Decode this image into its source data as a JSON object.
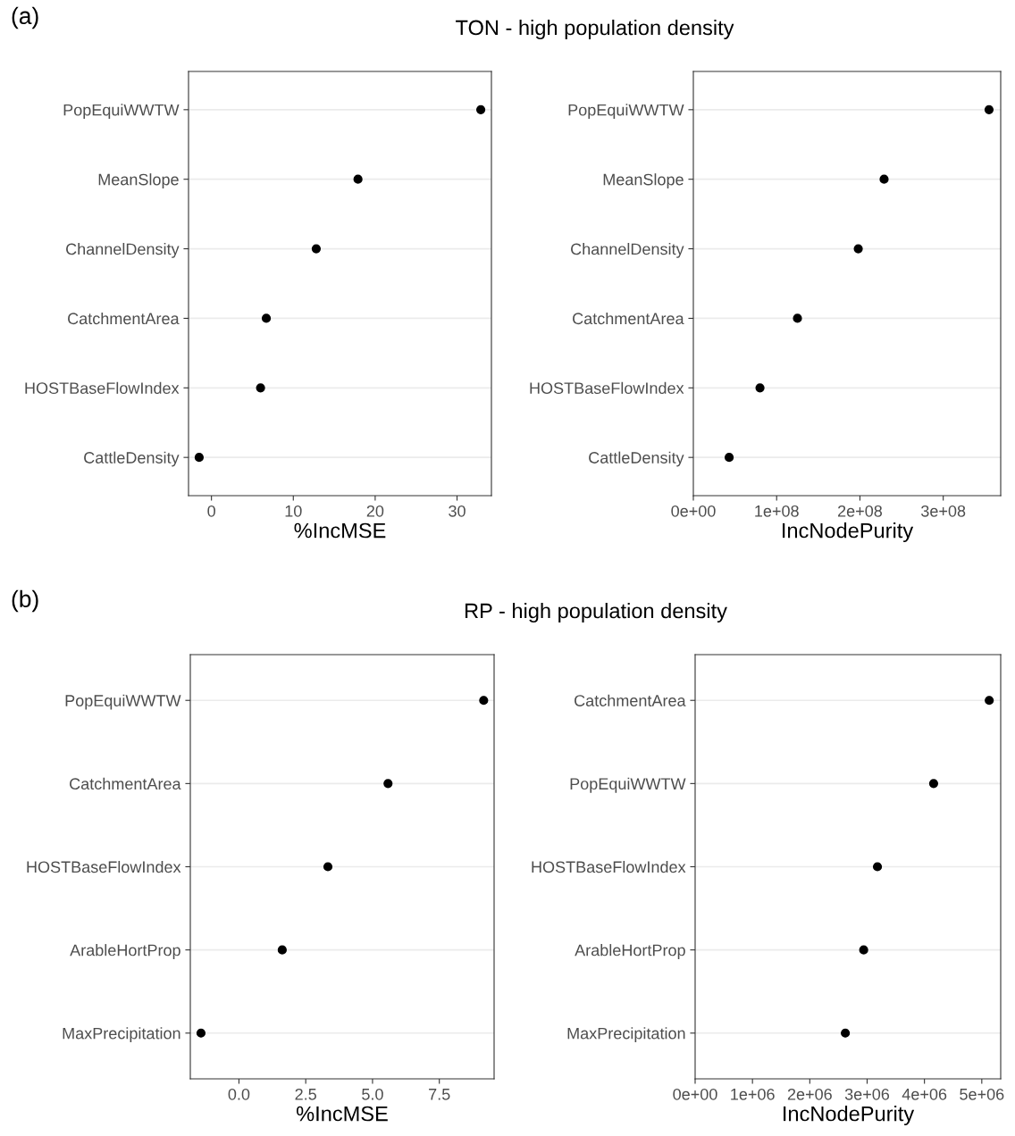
{
  "chart_data": [
    {
      "type": "scatter",
      "orientation": "horizontal",
      "title": "TON - high population density",
      "annotations": [
        "(a)"
      ],
      "xlabel": "%IncMSE",
      "categories": [
        "PopEquiWWTW",
        "MeanSlope",
        "ChannelDensity",
        "CatchmentArea",
        "HOSTBaseFlowIndex",
        "CattleDensity"
      ],
      "values": [
        32.9,
        17.9,
        12.8,
        6.7,
        6.0,
        -1.5
      ],
      "color": "#000000",
      "marker": "circle",
      "grid": "y",
      "xlim": [
        -2.8,
        34.2
      ],
      "xticks": [
        0,
        10,
        20,
        30
      ]
    },
    {
      "type": "scatter",
      "orientation": "horizontal",
      "xlabel": "IncNodePurity",
      "categories": [
        "PopEquiWWTW",
        "MeanSlope",
        "ChannelDensity",
        "CatchmentArea",
        "HOSTBaseFlowIndex",
        "CattleDensity"
      ],
      "values": [
        355000000,
        229000000,
        198000000,
        125000000,
        80000000,
        43000000
      ],
      "color": "#000000",
      "marker": "circle",
      "grid": "y",
      "xlim": [
        0,
        369000000
      ],
      "xticks": [
        {
          "value": 0,
          "label": "0e+00"
        },
        {
          "value": 100000000,
          "label": "1e+08"
        },
        {
          "value": 200000000,
          "label": "2e+08"
        },
        {
          "value": 300000000,
          "label": "3e+08"
        }
      ]
    },
    {
      "type": "scatter",
      "orientation": "horizontal",
      "title": "RP - high population density",
      "annotations": [
        "(b)"
      ],
      "xlabel": "%IncMSE",
      "categories": [
        "PopEquiWWTW",
        "CatchmentArea",
        "HOSTBaseFlowIndex",
        "ArableHortProp",
        "MaxPrecipitation"
      ],
      "values": [
        9.16,
        5.58,
        3.33,
        1.62,
        -1.42
      ],
      "color": "#000000",
      "marker": "circle",
      "grid": "y",
      "xlim": [
        -1.82,
        9.55
      ],
      "xticks": [
        {
          "value": 0,
          "label": "0.0"
        },
        {
          "value": 2.5,
          "label": "2.5"
        },
        {
          "value": 5,
          "label": "5.0"
        },
        {
          "value": 7.5,
          "label": "7.5"
        }
      ]
    },
    {
      "type": "scatter",
      "orientation": "horizontal",
      "xlabel": "IncNodePurity",
      "categories": [
        "CatchmentArea",
        "PopEquiWWTW",
        "HOSTBaseFlowIndex",
        "ArableHortProp",
        "MaxPrecipitation"
      ],
      "values": [
        5130000,
        4160000,
        3180000,
        2940000,
        2620000
      ],
      "color": "#000000",
      "marker": "circle",
      "grid": "y",
      "xlim": [
        0,
        5330000
      ],
      "xticks": [
        {
          "value": 0,
          "label": "0e+00"
        },
        {
          "value": 1000000,
          "label": "1e+06"
        },
        {
          "value": 2000000,
          "label": "2e+06"
        },
        {
          "value": 3000000,
          "label": "3e+06"
        },
        {
          "value": 4000000,
          "label": "4e+06"
        },
        {
          "value": 5000000,
          "label": "5e+06"
        }
      ]
    }
  ]
}
